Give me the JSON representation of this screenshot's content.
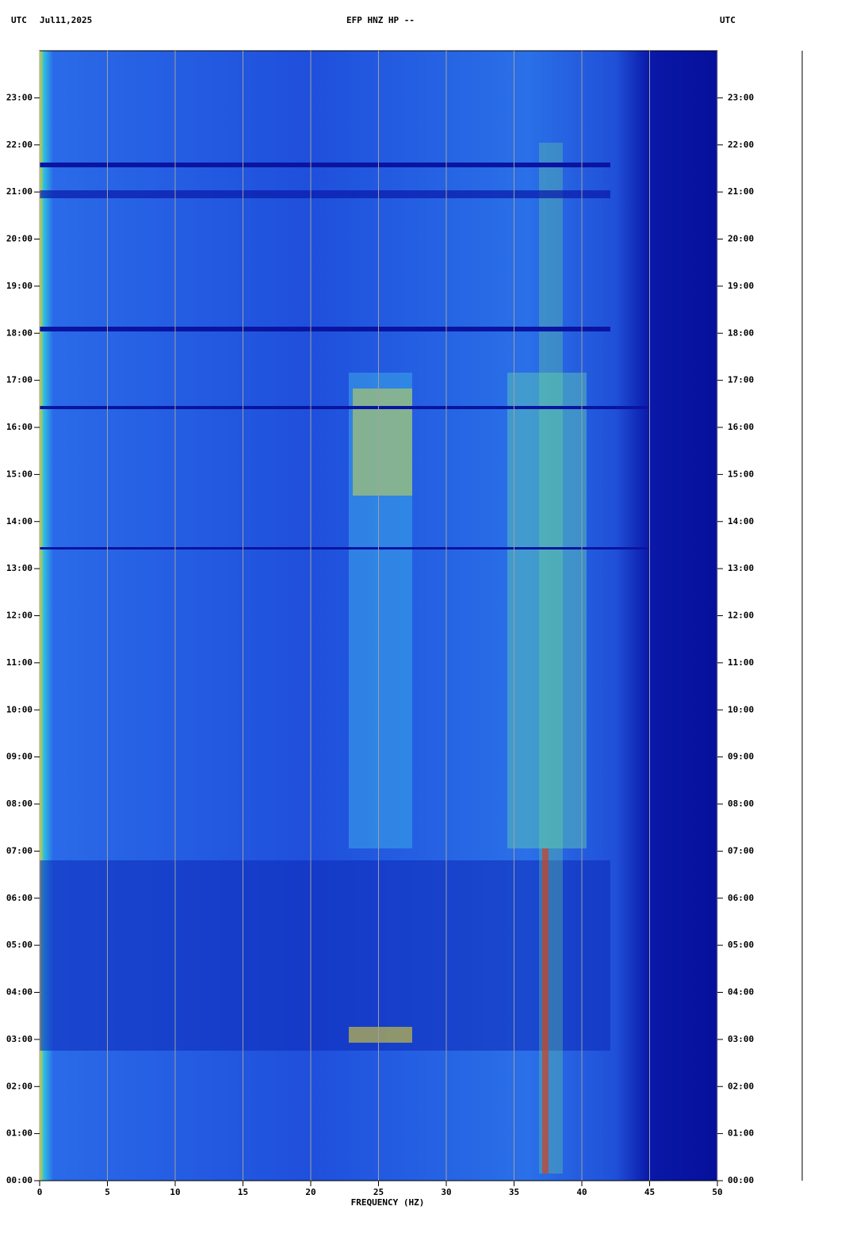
{
  "chart_data": {
    "type": "spectrogram",
    "title": "EFP HNZ HP --",
    "time_zone": "UTC",
    "date": "Jul11,2025",
    "x_label": "FREQUENCY (HZ)",
    "xlim": [
      0,
      50
    ],
    "xticks": [
      0,
      5,
      10,
      15,
      20,
      25,
      30,
      35,
      40,
      45,
      50
    ],
    "ylim": [
      0,
      24
    ],
    "yticks": [
      {
        "value": 0,
        "label": "00:00"
      },
      {
        "value": 1,
        "label": "01:00"
      },
      {
        "value": 2,
        "label": "02:00"
      },
      {
        "value": 3,
        "label": "03:00"
      },
      {
        "value": 4,
        "label": "04:00"
      },
      {
        "value": 5,
        "label": "05:00"
      },
      {
        "value": 6,
        "label": "06:00"
      },
      {
        "value": 7,
        "label": "07:00"
      },
      {
        "value": 8,
        "label": "08:00"
      },
      {
        "value": 9,
        "label": "09:00"
      },
      {
        "value": 10,
        "label": "10:00"
      },
      {
        "value": 11,
        "label": "11:00"
      },
      {
        "value": 12,
        "label": "12:00"
      },
      {
        "value": 13,
        "label": "13:00"
      },
      {
        "value": 14,
        "label": "14:00"
      },
      {
        "value": 15,
        "label": "15:00"
      },
      {
        "value": 16,
        "label": "16:00"
      },
      {
        "value": 17,
        "label": "17:00"
      },
      {
        "value": 18,
        "label": "18:00"
      },
      {
        "value": 19,
        "label": "19:00"
      },
      {
        "value": 20,
        "label": "20:00"
      },
      {
        "value": 21,
        "label": "21:00"
      },
      {
        "value": 22,
        "label": "22:00"
      },
      {
        "value": 23,
        "label": "23:00"
      }
    ],
    "grid": true
  }
}
